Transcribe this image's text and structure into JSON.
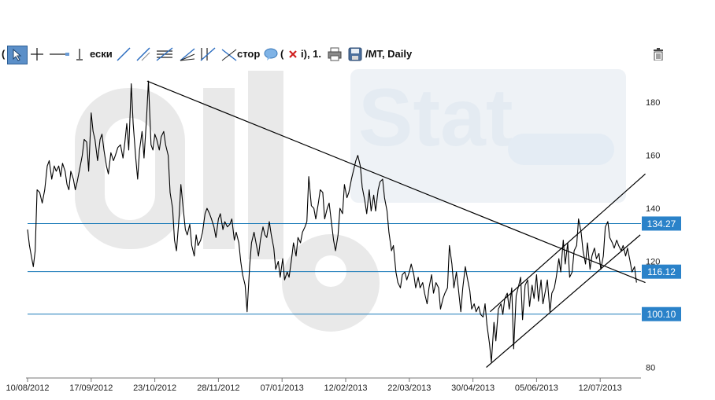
{
  "toolbar": {
    "title_frag1": "(",
    "title_frag2": "ески",
    "title_frag3": "стор",
    "title_frag4": "i), 1.",
    "symbol_suffix": "/MT, Daily",
    "icons": [
      "cursor-arrow-icon",
      "crosshair-icon",
      "horizontal-line-icon",
      "vertical-line-icon",
      "trend-line-icon",
      "ray-line-icon",
      "channel-icon",
      "fib-fan-icon",
      "gann-icon",
      "vector-icon",
      "comment-icon",
      "delete-icon",
      "print-icon",
      "save-icon",
      "trash-icon"
    ]
  },
  "watermark": {
    "brand": "oil",
    "brand2": "Stat"
  },
  "colors": {
    "price_line": "#000000",
    "level_line": "#1a7ab8",
    "level_label_bg": "#2a82c9",
    "level_label_text": "#ffffff",
    "grid_text": "#222222"
  },
  "chart_data": {
    "type": "line",
    "title": "",
    "xlabel": "",
    "ylabel": "",
    "ylim": [
      76,
      194
    ],
    "y_ticks": [
      80,
      100,
      120,
      140,
      160,
      180
    ],
    "x_ticks": [
      "10/08/2012",
      "17/09/2012",
      "23/10/2012",
      "28/11/2012",
      "07/01/2013",
      "12/02/2013",
      "22/03/2013",
      "30/04/2013",
      "05/06/2013",
      "12/07/2013"
    ],
    "x_range": [
      -0.04,
      9.7
    ],
    "series": [
      {
        "values": [
          [
            0.0,
            132.0
          ],
          [
            0.03,
            126.0
          ],
          [
            0.06,
            122.0
          ],
          [
            0.09,
            118.0
          ],
          [
            0.12,
            124.0
          ],
          [
            0.15,
            147.0
          ],
          [
            0.19,
            146.0
          ],
          [
            0.23,
            142.0
          ],
          [
            0.27,
            147.0
          ],
          [
            0.31,
            156.0
          ],
          [
            0.34,
            158.0
          ],
          [
            0.38,
            151.0
          ],
          [
            0.42,
            156.0
          ],
          [
            0.45,
            154.0
          ],
          [
            0.49,
            156.0
          ],
          [
            0.52,
            152.0
          ],
          [
            0.55,
            157.0
          ],
          [
            0.59,
            154.0
          ],
          [
            0.62,
            149.0
          ],
          [
            0.65,
            147.0
          ],
          [
            0.68,
            154.0
          ],
          [
            0.72,
            151.0
          ],
          [
            0.75,
            147.0
          ],
          [
            0.78,
            150.0
          ],
          [
            0.82,
            155.0
          ],
          [
            0.86,
            160.0
          ],
          [
            0.89,
            166.0
          ],
          [
            0.93,
            165.0
          ],
          [
            0.96,
            154.0
          ],
          [
            1.0,
            176.0
          ],
          [
            1.03,
            169.0
          ],
          [
            1.06,
            166.0
          ],
          [
            1.1,
            158.0
          ],
          [
            1.14,
            166.0
          ],
          [
            1.17,
            168.0
          ],
          [
            1.2,
            162.0
          ],
          [
            1.24,
            156.0
          ],
          [
            1.27,
            153.0
          ],
          [
            1.31,
            161.0
          ],
          [
            1.35,
            158.0
          ],
          [
            1.38,
            160.0
          ],
          [
            1.42,
            163.0
          ],
          [
            1.46,
            164.0
          ],
          [
            1.5,
            159.0
          ],
          [
            1.53,
            165.0
          ],
          [
            1.56,
            172.0
          ],
          [
            1.59,
            162.0
          ],
          [
            1.63,
            187.0
          ],
          [
            1.66,
            172.0
          ],
          [
            1.7,
            159.0
          ],
          [
            1.73,
            151.0
          ],
          [
            1.76,
            162.0
          ],
          [
            1.8,
            169.0
          ],
          [
            1.83,
            159.0
          ],
          [
            1.87,
            174.0
          ],
          [
            1.9,
            188.0
          ],
          [
            1.94,
            164.0
          ],
          [
            1.97,
            162.0
          ],
          [
            2.0,
            168.0
          ],
          [
            2.03,
            166.0
          ],
          [
            2.07,
            162.0
          ],
          [
            2.1,
            167.0
          ],
          [
            2.14,
            169.0
          ],
          [
            2.17,
            164.0
          ],
          [
            2.21,
            160.0
          ],
          [
            2.24,
            146.0
          ],
          [
            2.28,
            140.0
          ],
          [
            2.31,
            128.0
          ],
          [
            2.34,
            124.0
          ],
          [
            2.38,
            136.0
          ],
          [
            2.41,
            149.0
          ],
          [
            2.45,
            139.0
          ],
          [
            2.48,
            132.0
          ],
          [
            2.51,
            130.0
          ],
          [
            2.55,
            134.0
          ],
          [
            2.58,
            126.0
          ],
          [
            2.62,
            122.0
          ],
          [
            2.65,
            130.0
          ],
          [
            2.68,
            126.0
          ],
          [
            2.72,
            128.0
          ],
          [
            2.75,
            131.0
          ],
          [
            2.79,
            138.0
          ],
          [
            2.82,
            140.0
          ],
          [
            2.86,
            138.0
          ],
          [
            2.89,
            136.0
          ],
          [
            2.93,
            133.0
          ],
          [
            2.96,
            129.0
          ],
          [
            3.0,
            136.0
          ],
          [
            3.03,
            138.0
          ],
          [
            3.07,
            132.0
          ],
          [
            3.1,
            135.0
          ],
          [
            3.14,
            133.0
          ],
          [
            3.18,
            134.0
          ],
          [
            3.21,
            136.0
          ],
          [
            3.25,
            128.0
          ],
          [
            3.28,
            131.0
          ],
          [
            3.32,
            127.0
          ],
          [
            3.35,
            120.0
          ],
          [
            3.38,
            115.0
          ],
          [
            3.42,
            111.0
          ],
          [
            3.45,
            101.0
          ],
          [
            3.49,
            118.0
          ],
          [
            3.52,
            127.0
          ],
          [
            3.56,
            131.0
          ],
          [
            3.59,
            127.0
          ],
          [
            3.63,
            122.0
          ],
          [
            3.66,
            128.0
          ],
          [
            3.7,
            133.0
          ],
          [
            3.73,
            130.0
          ],
          [
            3.76,
            129.0
          ],
          [
            3.8,
            135.0
          ],
          [
            3.83,
            130.0
          ],
          [
            3.87,
            125.0
          ],
          [
            3.9,
            117.0
          ],
          [
            3.94,
            120.0
          ],
          [
            3.97,
            114.0
          ],
          [
            4.01,
            121.0
          ],
          [
            4.04,
            113.0
          ],
          [
            4.08,
            116.0
          ],
          [
            4.11,
            114.0
          ],
          [
            4.15,
            121.0
          ],
          [
            4.18,
            127.0
          ],
          [
            4.22,
            122.0
          ],
          [
            4.25,
            129.0
          ],
          [
            4.29,
            127.0
          ],
          [
            4.32,
            131.0
          ],
          [
            4.36,
            133.0
          ],
          [
            4.39,
            135.0
          ],
          [
            4.42,
            152.0
          ],
          [
            4.46,
            141.0
          ],
          [
            4.5,
            140.0
          ],
          [
            4.53,
            136.0
          ],
          [
            4.57,
            142.0
          ],
          [
            4.6,
            147.0
          ],
          [
            4.64,
            146.0
          ],
          [
            4.67,
            136.0
          ],
          [
            4.71,
            140.0
          ],
          [
            4.74,
            142.0
          ],
          [
            4.78,
            134.0
          ],
          [
            4.81,
            128.0
          ],
          [
            4.84,
            124.0
          ],
          [
            4.88,
            130.0
          ],
          [
            4.91,
            140.0
          ],
          [
            4.95,
            138.0
          ],
          [
            4.98,
            149.0
          ],
          [
            5.02,
            144.0
          ],
          [
            5.05,
            146.0
          ],
          [
            5.09,
            151.0
          ],
          [
            5.12,
            154.0
          ],
          [
            5.16,
            158.0
          ],
          [
            5.19,
            160.0
          ],
          [
            5.23,
            156.0
          ],
          [
            5.26,
            148.0
          ],
          [
            5.3,
            143.0
          ],
          [
            5.33,
            138.0
          ],
          [
            5.37,
            147.0
          ],
          [
            5.4,
            139.0
          ],
          [
            5.44,
            145.0
          ],
          [
            5.47,
            139.0
          ],
          [
            5.51,
            147.0
          ],
          [
            5.54,
            150.0
          ],
          [
            5.58,
            151.0
          ],
          [
            5.61,
            144.0
          ],
          [
            5.65,
            139.0
          ],
          [
            5.68,
            131.0
          ],
          [
            5.72,
            124.0
          ],
          [
            5.75,
            126.0
          ],
          [
            5.79,
            116.0
          ],
          [
            5.82,
            112.0
          ],
          [
            5.86,
            110.0
          ],
          [
            5.89,
            115.0
          ],
          [
            5.93,
            116.0
          ],
          [
            5.96,
            113.0
          ],
          [
            6.0,
            116.0
          ],
          [
            6.03,
            119.0
          ],
          [
            6.07,
            115.0
          ],
          [
            6.1,
            110.0
          ],
          [
            6.14,
            114.0
          ],
          [
            6.17,
            110.0
          ],
          [
            6.21,
            112.0
          ],
          [
            6.24,
            108.0
          ],
          [
            6.28,
            104.0
          ],
          [
            6.31,
            110.0
          ],
          [
            6.35,
            115.0
          ],
          [
            6.38,
            108.0
          ],
          [
            6.42,
            112.0
          ],
          [
            6.46,
            110.0
          ],
          [
            6.49,
            102.0
          ],
          [
            6.53,
            106.0
          ],
          [
            6.56,
            108.0
          ],
          [
            6.6,
            110.0
          ],
          [
            6.63,
            126.0
          ],
          [
            6.67,
            119.0
          ],
          [
            6.7,
            110.0
          ],
          [
            6.74,
            116.0
          ],
          [
            6.77,
            110.0
          ],
          [
            6.81,
            101.0
          ],
          [
            6.84,
            110.0
          ],
          [
            6.88,
            118.0
          ],
          [
            6.91,
            114.0
          ],
          [
            6.95,
            109.0
          ],
          [
            6.98,
            102.0
          ],
          [
            7.02,
            104.0
          ],
          [
            7.05,
            101.0
          ],
          [
            7.09,
            103.0
          ],
          [
            7.12,
            100.0
          ],
          [
            7.16,
            99.0
          ],
          [
            7.19,
            104.0
          ],
          [
            7.22,
            96.0
          ],
          [
            7.26,
            89.0
          ],
          [
            7.29,
            82.0
          ],
          [
            7.33,
            97.0
          ],
          [
            7.36,
            90.0
          ],
          [
            7.4,
            102.0
          ],
          [
            7.44,
            104.0
          ],
          [
            7.47,
            100.0
          ],
          [
            7.5,
            106.0
          ],
          [
            7.54,
            108.0
          ],
          [
            7.57,
            102.0
          ],
          [
            7.61,
            110.0
          ],
          [
            7.64,
            87.0
          ],
          [
            7.68,
            107.0
          ],
          [
            7.71,
            110.0
          ],
          [
            7.75,
            114.0
          ],
          [
            7.78,
            98.0
          ],
          [
            7.82,
            111.0
          ],
          [
            7.86,
            113.0
          ],
          [
            7.89,
            103.0
          ],
          [
            7.93,
            111.0
          ],
          [
            7.96,
            106.0
          ],
          [
            8.0,
            115.0
          ],
          [
            8.03,
            105.0
          ],
          [
            8.07,
            113.0
          ],
          [
            8.1,
            104.0
          ],
          [
            8.14,
            109.0
          ],
          [
            8.17,
            113.0
          ],
          [
            8.21,
            101.0
          ],
          [
            8.24,
            108.0
          ],
          [
            8.28,
            110.0
          ],
          [
            8.31,
            114.0
          ],
          [
            8.35,
            121.0
          ],
          [
            8.38,
            116.0
          ],
          [
            8.42,
            128.0
          ],
          [
            8.45,
            119.0
          ],
          [
            8.49,
            127.0
          ],
          [
            8.52,
            114.0
          ],
          [
            8.56,
            116.0
          ],
          [
            8.59,
            124.0
          ],
          [
            8.63,
            126.0
          ],
          [
            8.66,
            136.0
          ],
          [
            8.7,
            131.0
          ],
          [
            8.73,
            124.0
          ],
          [
            8.77,
            119.0
          ],
          [
            8.8,
            127.0
          ],
          [
            8.84,
            117.0
          ],
          [
            8.87,
            122.0
          ],
          [
            8.91,
            125.0
          ],
          [
            8.94,
            121.0
          ],
          [
            8.98,
            123.0
          ],
          [
            9.01,
            117.0
          ],
          [
            9.05,
            122.0
          ],
          [
            9.08,
            133.0
          ],
          [
            9.12,
            135.0
          ],
          [
            9.15,
            129.0
          ],
          [
            9.19,
            127.0
          ],
          [
            9.22,
            125.0
          ],
          [
            9.26,
            128.0
          ],
          [
            9.29,
            126.0
          ],
          [
            9.33,
            124.0
          ],
          [
            9.36,
            126.0
          ],
          [
            9.4,
            122.0
          ],
          [
            9.43,
            125.0
          ],
          [
            9.47,
            120.0
          ],
          [
            9.5,
            116.0
          ],
          [
            9.54,
            118.0
          ],
          [
            9.57,
            112.0
          ]
        ]
      }
    ],
    "horizontal_levels": [
      {
        "value": 134.27,
        "label": "134.27"
      },
      {
        "value": 116.12,
        "label": "116.12"
      },
      {
        "value": 100.1,
        "label": "100.10"
      }
    ],
    "trend_lines": [
      {
        "from": [
          1.88,
          188.0
        ],
        "to": [
          9.71,
          112.0
        ]
      },
      {
        "from": [
          7.27,
          101.0
        ],
        "to": [
          9.71,
          153.0
        ]
      },
      {
        "from": [
          7.21,
          80.0
        ],
        "to": [
          9.63,
          130.0
        ]
      }
    ]
  }
}
